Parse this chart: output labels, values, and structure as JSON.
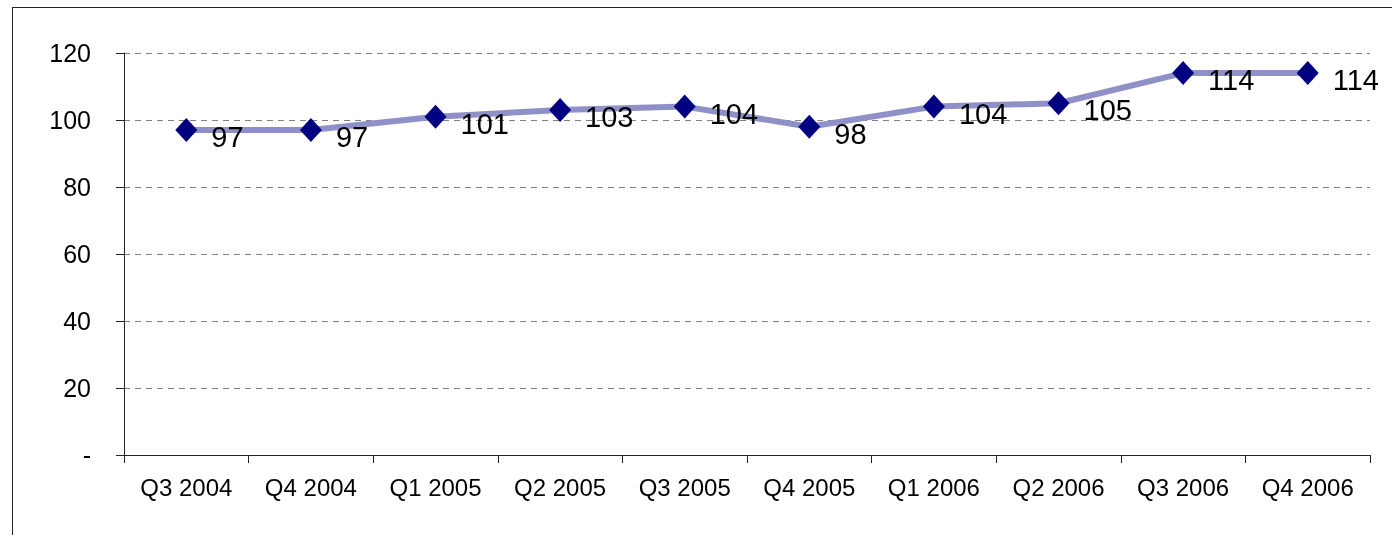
{
  "chart_data": {
    "type": "line",
    "categories": [
      "Q3 2004",
      "Q4 2004",
      "Q1 2005",
      "Q2 2005",
      "Q3 2005",
      "Q4 2005",
      "Q1 2006",
      "Q2 2006",
      "Q3 2006",
      "Q4 2006"
    ],
    "series": [
      {
        "color": "#9090c8",
        "colors": [
          "#000080",
          "#000080",
          "#000080",
          "#000080",
          "#000080",
          "#000080",
          "#000080",
          "#000080",
          "#000080",
          "#000080"
        ],
        "values": [
          97,
          97,
          101,
          103,
          104,
          98,
          104,
          105,
          114,
          114
        ]
      }
    ],
    "ylim": [
      0,
      120
    ],
    "yticks": [
      {
        "value": 0,
        "label": "-"
      },
      20,
      40,
      60,
      80,
      100,
      120
    ],
    "grid": "y",
    "marker": "diamond",
    "line_style": "solid",
    "data_labels": true
  }
}
